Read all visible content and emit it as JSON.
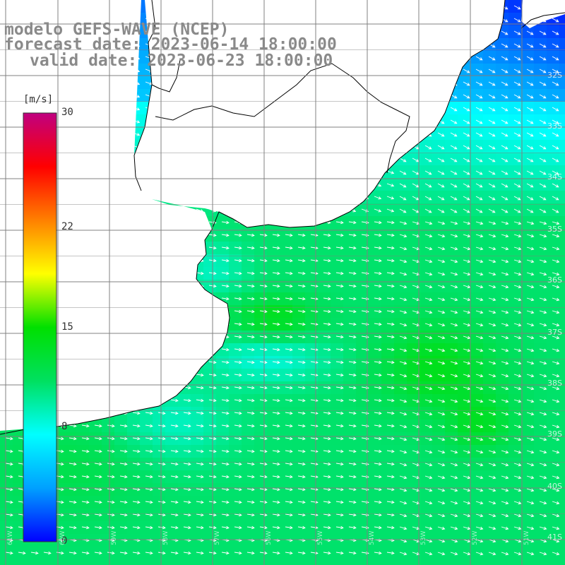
{
  "header": {
    "title_model": "modelo GEFS-WAVE (NCEP)",
    "forecast_date": "forecast date: 2023-06-14 18:00:00",
    "valid_date": "valid date: 2023-06-23 18:00:00"
  },
  "colorbar": {
    "units": "[m/s]",
    "ticks": [
      {
        "value": 30,
        "label": "30"
      },
      {
        "value": 22,
        "label": "22"
      },
      {
        "value": 15,
        "label": "15"
      },
      {
        "value": 8,
        "label": "8"
      },
      {
        "value": 0,
        "label": "0"
      }
    ],
    "min": 0,
    "max": 30,
    "colors": [
      "#0000ff",
      "#00a0ff",
      "#00ffff",
      "#00e060",
      "#00e000",
      "#ffff00",
      "#ff8000",
      "#ff0000",
      "#c00080"
    ]
  },
  "map": {
    "lat_labels": [
      "32S",
      "33S",
      "34S",
      "35S",
      "36S",
      "37S",
      "38S",
      "39S",
      "40S",
      "41S"
    ],
    "lon_labels": [
      "61W",
      "60W",
      "59W",
      "58W",
      "57W",
      "56W",
      "55W",
      "54W",
      "53W",
      "52W",
      "51W"
    ],
    "land_color": "#ffffff",
    "coast_color": "#000000",
    "grid_color": "#808080",
    "arrow_color": "#ffffff"
  }
}
